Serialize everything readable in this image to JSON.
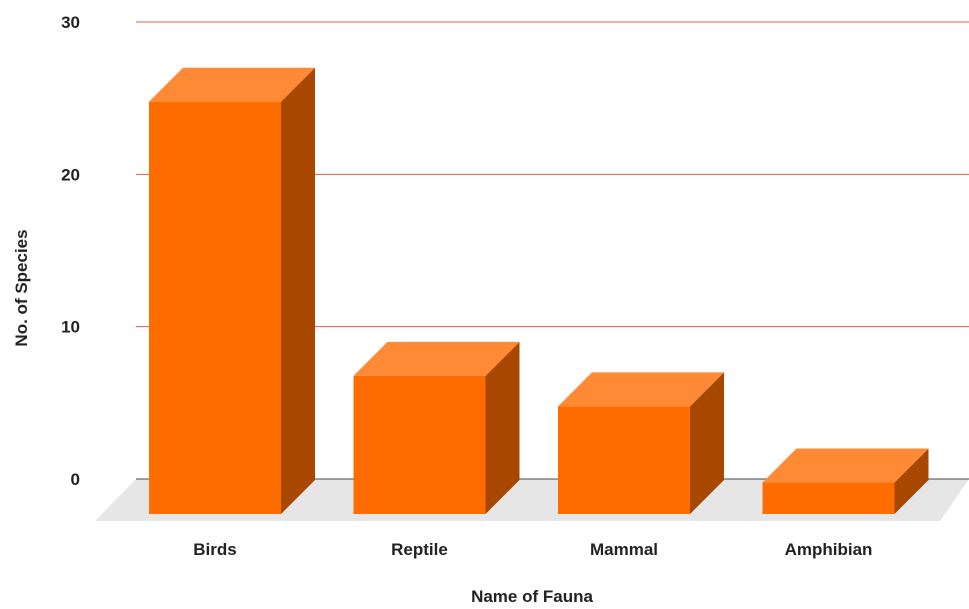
{
  "chart_data": {
    "type": "bar",
    "categories": [
      "Birds",
      "Reptile",
      "Mammal",
      "Amphibian"
    ],
    "values": [
      27,
      9,
      7,
      2
    ],
    "xlabel": "Name of Fauna",
    "ylabel": "No. of Species",
    "ylim": [
      0,
      30
    ],
    "yticks": [
      "0",
      "10",
      "20",
      "30"
    ],
    "grid": true,
    "legend": "none",
    "style": "3d-column"
  },
  "colors": {
    "bar_front": "#ff6d00",
    "bar_top": "#ff8a35",
    "bar_side": "#a84800",
    "gridline": "#ef5a4a",
    "baseline": "#444444",
    "floor": "#e6e6e6"
  }
}
